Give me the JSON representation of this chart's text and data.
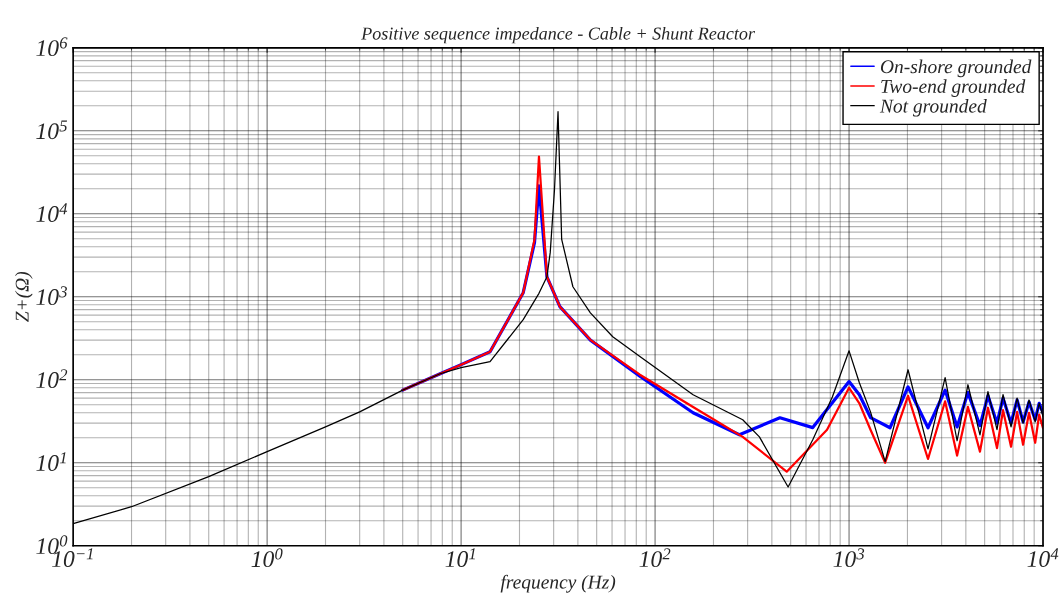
{
  "chart_data": {
    "type": "line",
    "title": "Positive sequence impedance - Cable + Shunt Reactor",
    "xlabel": "frequency (Hz)",
    "ylabel": "Z+(Ω)",
    "log": "xy",
    "grid": true,
    "legend": "top right",
    "line_style": "solid",
    "marker": "none",
    "xlim": [
      0.1,
      10000
    ],
    "ylim": [
      1,
      1000000
    ],
    "xticks": [
      {
        "value": 0.1,
        "label": "10$^{−1}$"
      },
      {
        "value": 1,
        "label": "10$^{0}$"
      },
      {
        "value": 10,
        "label": "10$^{1}$"
      },
      {
        "value": 100,
        "label": "10$^{2}$"
      },
      {
        "value": 1000,
        "label": "10$^{3}$"
      },
      {
        "value": 10000,
        "label": "10$^{4}$"
      }
    ],
    "yticks": [
      {
        "value": 1,
        "label": "10$^{0}$"
      },
      {
        "value": 10,
        "label": "10$^{1}$"
      },
      {
        "value": 100,
        "label": "10$^{2}$"
      },
      {
        "value": 1000,
        "label": "10$^{3}$"
      },
      {
        "value": 10000,
        "label": "10$^{4}$"
      },
      {
        "value": 100000,
        "label": "10$^{5}$"
      },
      {
        "value": 1000000,
        "label": "10$^{6}$"
      }
    ],
    "series": [
      {
        "name": "On-shore grounded",
        "color": "#0000ff",
        "x": [
          5,
          7.8,
          10,
          14.1,
          20.9,
          23.9,
          25.2,
          27.7,
          32.3,
          46.4,
          83.5,
          157,
          272,
          440,
          650,
          1000,
          1130,
          1290,
          1626,
          2014,
          2553,
          3127,
          3605,
          4100,
          4730,
          5200,
          5790,
          6220,
          6840,
          7350,
          7890,
          8470,
          9110,
          9550,
          10000
        ],
        "values": [
          75,
          118,
          152,
          217,
          1120,
          4500,
          21700,
          1740,
          760,
          300,
          110,
          40,
          21.7,
          34.8,
          26.5,
          95,
          66,
          35,
          26.4,
          82,
          26.4,
          75,
          27,
          70,
          28,
          64,
          30,
          60,
          30,
          57,
          31,
          54,
          33,
          52,
          40
        ]
      },
      {
        "name": "Two-end grounded",
        "color": "#ff0000",
        "x": [
          5,
          7.8,
          10,
          14.1,
          20.9,
          23.9,
          25.2,
          27.7,
          32.3,
          46.4,
          83.5,
          157,
          283,
          477,
          770,
          1000,
          1130,
          1290,
          1535,
          2014,
          2553,
          3127,
          3605,
          4100,
          4730,
          5200,
          5790,
          6220,
          6840,
          7350,
          7890,
          8470,
          9110,
          9550,
          10000
        ],
        "values": [
          75,
          118,
          152,
          217,
          1120,
          4900,
          49000,
          1740,
          760,
          303,
          115,
          47,
          20.5,
          7.8,
          25,
          80,
          52,
          25,
          10,
          64,
          11.1,
          55,
          12.2,
          47,
          13.6,
          46,
          15,
          43,
          15.6,
          41,
          16.5,
          40,
          17.4,
          38,
          26
        ]
      },
      {
        "name": "Not grounded",
        "color": "#000000",
        "x": [
          0.1,
          0.2,
          0.5,
          1,
          2,
          3,
          5,
          7.8,
          10,
          14.1,
          20.9,
          25.2,
          27.7,
          28.8,
          30.3,
          31.6,
          33,
          37.7,
          46.4,
          60.5,
          83.5,
          157,
          283,
          345,
          485,
          650,
          820,
          1000,
          1130,
          1290,
          1535,
          2014,
          2553,
          3127,
          3605,
          4100,
          4730,
          5200,
          5790,
          6220,
          6840,
          7350,
          7890,
          8470,
          9110,
          9550,
          10000
        ],
        "values": [
          1.84,
          2.95,
          6.8,
          13.6,
          27,
          41,
          75,
          118,
          140,
          165,
          530,
          1100,
          1740,
          3400,
          19500,
          170000,
          4900,
          1320,
          640,
          330,
          190,
          66,
          33,
          20.5,
          5.1,
          18.9,
          62,
          223,
          92,
          41,
          10.3,
          132,
          14.7,
          106,
          18.4,
          87,
          21.7,
          72,
          25,
          66,
          27,
          60,
          30,
          57,
          31,
          52,
          36
        ]
      }
    ]
  }
}
